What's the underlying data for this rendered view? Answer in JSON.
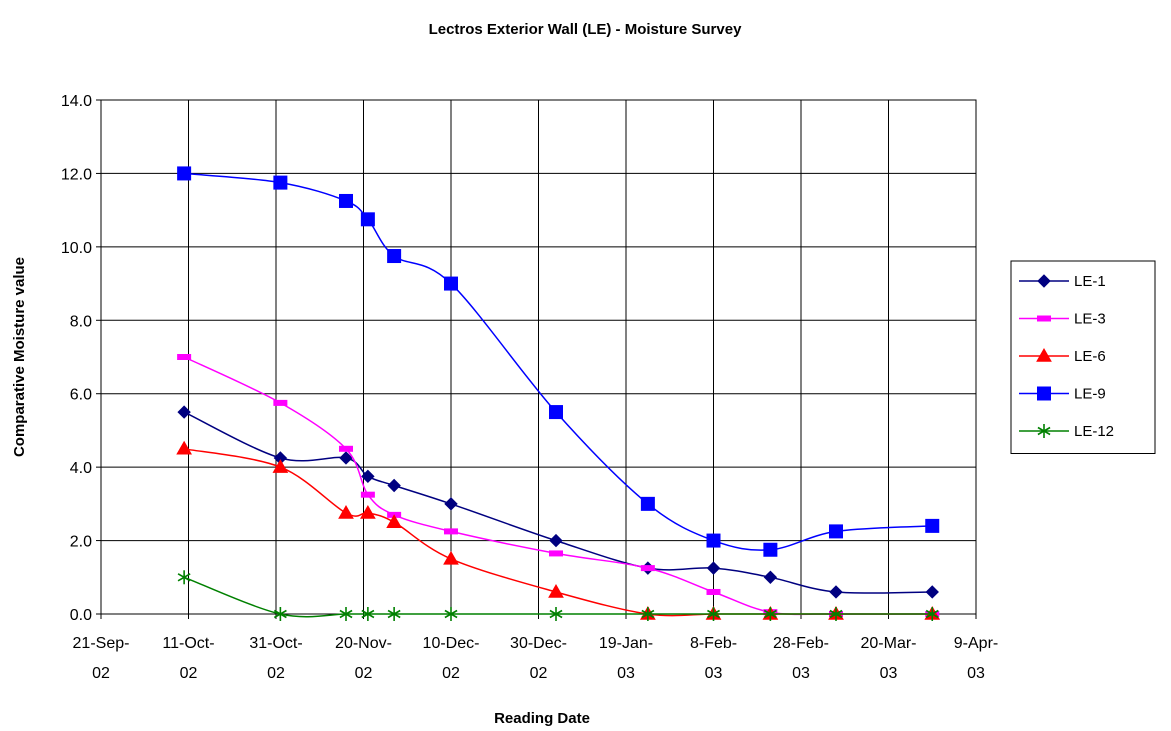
{
  "chart_data": {
    "type": "line",
    "title": "Lectros Exterior Wall (LE) - Moisture Survey",
    "xlabel": "Reading Date",
    "ylabel": "Comparative Moisture value",
    "xlim": [
      "2002-09-21",
      "2003-04-09"
    ],
    "ylim": [
      0,
      14
    ],
    "grid": true,
    "legend_position": "right",
    "x_tick_labels": [
      [
        "21-Sep-",
        "02"
      ],
      [
        "11-Oct-",
        "02"
      ],
      [
        "31-Oct-",
        "02"
      ],
      [
        "20-Nov-",
        "02"
      ],
      [
        "10-Dec-",
        "02"
      ],
      [
        "30-Dec-",
        "02"
      ],
      [
        "19-Jan-",
        "03"
      ],
      [
        "8-Feb-",
        "03"
      ],
      [
        "28-Feb-",
        "03"
      ],
      [
        "20-Mar-",
        "03"
      ],
      [
        "9-Apr-",
        "03"
      ]
    ],
    "x_tick_dates": [
      "2002-09-21",
      "2002-10-11",
      "2002-10-31",
      "2002-11-20",
      "2002-12-10",
      "2002-12-30",
      "2003-01-19",
      "2003-02-08",
      "2003-02-28",
      "2003-03-20",
      "2003-04-09"
    ],
    "y_tick_labels": [
      "0.0",
      "2.0",
      "4.0",
      "6.0",
      "8.0",
      "10.0",
      "12.0",
      "14.0"
    ],
    "y_tick_values": [
      0,
      2,
      4,
      6,
      8,
      10,
      12,
      14
    ],
    "x": [
      "2002-10-10",
      "2002-11-01",
      "2002-11-16",
      "2002-11-21",
      "2002-11-27",
      "2002-12-10",
      "2003-01-03",
      "2003-01-24",
      "2003-02-08",
      "2003-02-21",
      "2003-03-08",
      "2003-03-30"
    ],
    "series": [
      {
        "name": "LE-1",
        "color": "#000080",
        "marker": "diamond",
        "values": [
          5.5,
          4.25,
          4.25,
          3.75,
          3.5,
          3.0,
          2.0,
          1.25,
          1.25,
          1.0,
          0.6,
          0.6
        ]
      },
      {
        "name": "LE-3",
        "color": "#ff00ff",
        "marker": "dash",
        "values": [
          7.0,
          5.75,
          4.5,
          3.25,
          2.7,
          2.25,
          1.65,
          1.25,
          0.6,
          0.05,
          0.0,
          0.0
        ]
      },
      {
        "name": "LE-6",
        "color": "#ff0000",
        "marker": "triangle",
        "values": [
          4.5,
          4.0,
          2.75,
          2.75,
          2.5,
          1.5,
          0.6,
          0.0,
          0.0,
          0.0,
          0.0,
          0.0
        ]
      },
      {
        "name": "LE-9",
        "color": "#0000ff",
        "marker": "square",
        "values": [
          12.0,
          11.75,
          11.25,
          10.75,
          9.75,
          9.0,
          5.5,
          3.0,
          2.0,
          1.75,
          2.25,
          2.4
        ]
      },
      {
        "name": "LE-12",
        "color": "#008000",
        "marker": "asterisk",
        "values": [
          1.0,
          0.0,
          0.0,
          0.0,
          0.0,
          0.0,
          0.0,
          0.0,
          0.0,
          0.0,
          0.0,
          0.0
        ]
      }
    ]
  }
}
